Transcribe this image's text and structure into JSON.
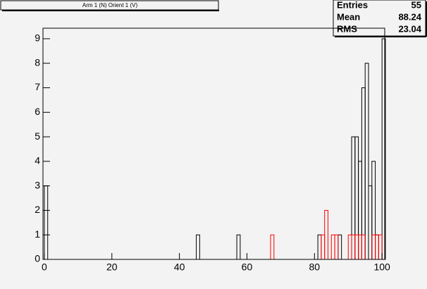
{
  "chart_data": {
    "type": "histogram",
    "title": "Arm 1 (N) Orient 1 (V)",
    "bins": [
      0,
      1,
      2,
      3,
      4,
      5,
      6,
      7,
      8,
      9,
      10,
      11,
      12,
      13,
      14,
      15,
      16,
      17,
      18,
      19,
      20,
      21,
      22,
      23,
      24,
      25,
      26,
      27,
      28,
      29,
      30,
      31,
      32,
      33,
      34,
      35,
      36,
      37,
      38,
      39,
      40,
      41,
      42,
      43,
      44,
      45,
      46,
      47,
      48,
      49,
      50,
      51,
      52,
      53,
      54,
      55,
      56,
      57,
      58,
      59,
      60,
      61,
      62,
      63,
      64,
      65,
      66,
      67,
      68,
      69,
      70,
      71,
      72,
      73,
      74,
      75,
      76,
      77,
      78,
      79,
      80,
      81,
      82,
      83,
      84,
      85,
      86,
      87,
      88,
      89,
      90,
      91,
      92,
      93,
      94,
      95,
      96,
      97,
      98,
      99,
      100,
      101
    ],
    "series": [
      {
        "color": "#000000",
        "values": [
          3,
          0,
          0,
          0,
          0,
          0,
          0,
          0,
          0,
          0,
          0,
          0,
          0,
          0,
          0,
          0,
          0,
          0,
          0,
          0,
          0,
          0,
          0,
          0,
          0,
          0,
          0,
          0,
          0,
          0,
          0,
          0,
          0,
          0,
          0,
          0,
          0,
          0,
          0,
          0,
          0,
          0,
          0,
          0,
          0,
          1,
          0,
          0,
          0,
          0,
          0,
          0,
          0,
          0,
          0,
          0,
          0,
          1,
          0,
          0,
          0,
          0,
          0,
          0,
          0,
          0,
          0,
          0,
          0,
          0,
          0,
          0,
          0,
          0,
          0,
          0,
          0,
          0,
          0,
          0,
          0,
          1,
          0,
          0,
          0,
          0,
          0,
          1,
          0,
          0,
          0,
          5,
          5,
          4,
          7,
          8,
          3,
          4,
          1,
          0,
          9
        ]
      },
      {
        "color": "#ff0000",
        "values": [
          0,
          0,
          0,
          0,
          0,
          0,
          0,
          0,
          0,
          0,
          0,
          0,
          0,
          0,
          0,
          0,
          0,
          0,
          0,
          0,
          0,
          0,
          0,
          0,
          0,
          0,
          0,
          0,
          0,
          0,
          0,
          0,
          0,
          0,
          0,
          0,
          0,
          0,
          0,
          0,
          0,
          0,
          0,
          0,
          0,
          0,
          0,
          0,
          0,
          0,
          0,
          0,
          0,
          0,
          0,
          0,
          0,
          0,
          0,
          0,
          0,
          0,
          0,
          0,
          0,
          0,
          0,
          1,
          0,
          0,
          0,
          0,
          0,
          0,
          0,
          0,
          0,
          0,
          0,
          0,
          0,
          0,
          1,
          2,
          0,
          1,
          1,
          0,
          0,
          0,
          1,
          1,
          1,
          1,
          1,
          0,
          0,
          1,
          1,
          1,
          0
        ]
      }
    ],
    "xlim": [
      -0.4,
      100.8
    ],
    "ylim": [
      0,
      9.43
    ],
    "xticks": [
      0,
      20,
      40,
      60,
      80,
      100
    ],
    "yticks": [
      0,
      1,
      2,
      3,
      4,
      5,
      6,
      7,
      8,
      9
    ],
    "stats": {
      "labels": [
        "Entries",
        "Mean",
        "RMS"
      ],
      "values": [
        55,
        88.24,
        23.04
      ]
    }
  }
}
